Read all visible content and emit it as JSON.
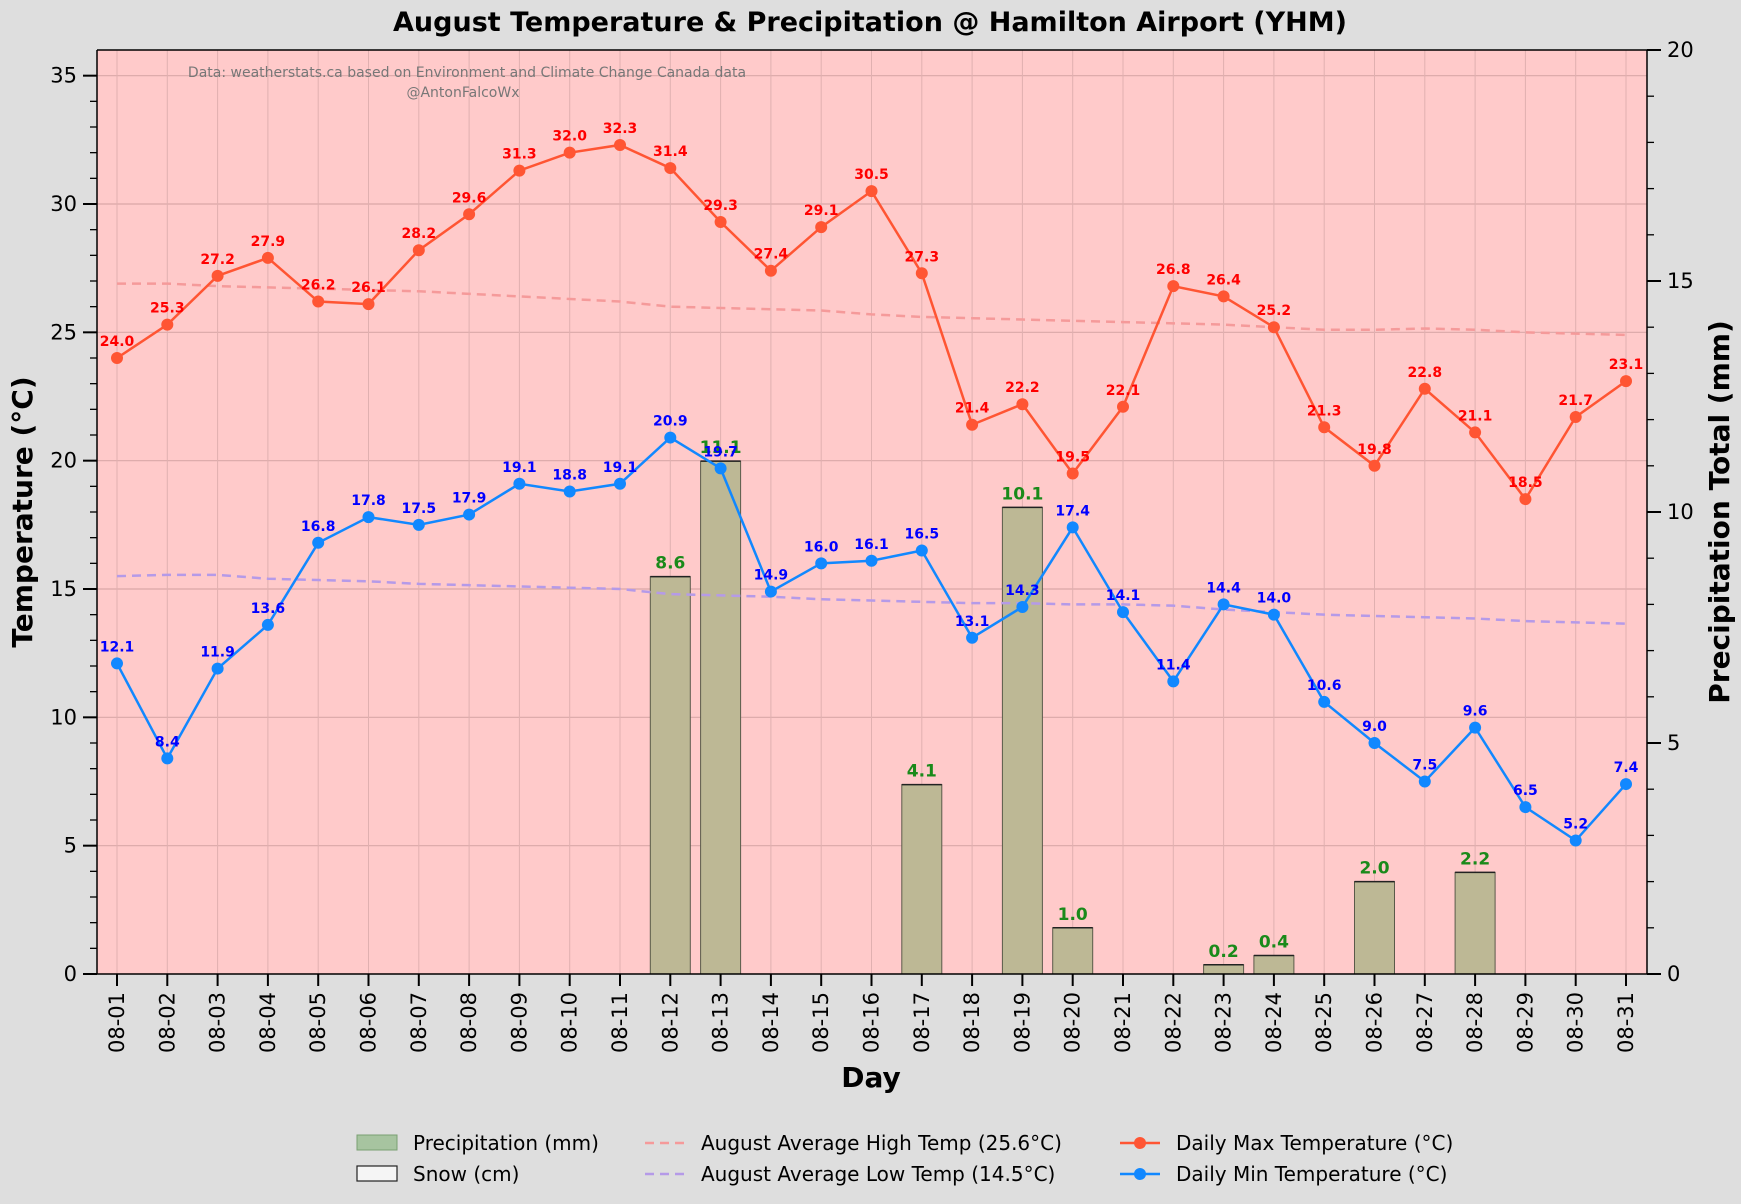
{
  "chart_data": {
    "type": "bar+line",
    "title": "August Temperature & Precipitation @ Hamilton Airport (YHM)",
    "xlabel": "Day",
    "ylabel_left": "Temperature (°C)",
    "ylabel_right": "Precipitation Total (mm)",
    "ylim_left": [
      0,
      36
    ],
    "ylim_right": [
      0,
      20
    ],
    "yticks_left": [
      0,
      5,
      10,
      15,
      20,
      25,
      30,
      35
    ],
    "yticks_right": [
      0,
      5,
      10,
      15,
      20
    ],
    "credit_line1": "Data: weatherstats.ca based on Environment and Climate Change Canada data",
    "credit_line2": "@AntonFalcoWx",
    "categories": [
      "08-01",
      "08-02",
      "08-03",
      "08-04",
      "08-05",
      "08-06",
      "08-07",
      "08-08",
      "08-09",
      "08-10",
      "08-11",
      "08-12",
      "08-13",
      "08-14",
      "08-15",
      "08-16",
      "08-17",
      "08-18",
      "08-19",
      "08-20",
      "08-21",
      "08-22",
      "08-23",
      "08-24",
      "08-25",
      "08-26",
      "08-27",
      "08-28",
      "08-29",
      "08-30",
      "08-31"
    ],
    "series": [
      {
        "name": "Daily Max Temperature (°C)",
        "axis": "left",
        "color": "#ff5533",
        "labelColor": "#ff0000",
        "values": [
          24.0,
          25.3,
          27.2,
          27.9,
          26.2,
          26.1,
          28.2,
          29.6,
          31.3,
          32.0,
          32.3,
          31.4,
          29.3,
          27.4,
          29.1,
          30.5,
          27.3,
          21.4,
          22.2,
          19.5,
          22.1,
          26.8,
          26.4,
          25.2,
          21.3,
          19.8,
          22.8,
          21.1,
          18.5,
          21.7,
          23.1
        ]
      },
      {
        "name": "Daily Min Temperature (°C)",
        "axis": "left",
        "color": "#1188ff",
        "labelColor": "#0000ff",
        "values": [
          12.1,
          8.4,
          11.9,
          13.6,
          16.8,
          17.8,
          17.5,
          17.9,
          19.1,
          18.8,
          19.1,
          20.9,
          19.7,
          14.9,
          16.0,
          16.1,
          16.5,
          13.1,
          14.3,
          17.4,
          14.1,
          11.4,
          14.4,
          14.0,
          10.6,
          9.0,
          7.5,
          9.6,
          6.5,
          5.2,
          7.4
        ]
      },
      {
        "name": "Precipitation (mm)",
        "axis": "right",
        "color": "#a7c4a0",
        "values": [
          0,
          0,
          0,
          0,
          0,
          0,
          0,
          0,
          0,
          0,
          0,
          8.6,
          11.1,
          0,
          0,
          0,
          4.1,
          0,
          10.1,
          1.0,
          0,
          0,
          0.2,
          0.4,
          0,
          2.0,
          0,
          2.2,
          0,
          0,
          0
        ]
      },
      {
        "name": "Snow (cm)",
        "axis": "right",
        "color": "#f5f5f5",
        "values": [
          0,
          0,
          0,
          0,
          0,
          0,
          0,
          0,
          0,
          0,
          0,
          0,
          0,
          0,
          0,
          0,
          0,
          0,
          0,
          0,
          0,
          0,
          0,
          0,
          0,
          0,
          0,
          0,
          0,
          0,
          0
        ]
      },
      {
        "name": "August Average High Temp (25.6°C)",
        "axis": "left",
        "color": "#f59a9a",
        "dashed": true,
        "values": [
          26.9,
          26.9,
          26.8,
          26.75,
          26.7,
          26.65,
          26.6,
          26.5,
          26.4,
          26.3,
          26.2,
          26.0,
          25.95,
          25.9,
          25.85,
          25.7,
          25.6,
          25.55,
          25.5,
          25.45,
          25.4,
          25.35,
          25.3,
          25.2,
          25.1,
          25.1,
          25.15,
          25.1,
          25.0,
          24.95,
          24.9
        ]
      },
      {
        "name": "August Average Low Temp (14.5°C)",
        "axis": "left",
        "color": "#b59ae8",
        "dashed": true,
        "values": [
          15.5,
          15.55,
          15.55,
          15.4,
          15.35,
          15.3,
          15.2,
          15.15,
          15.1,
          15.05,
          15.0,
          14.8,
          14.75,
          14.7,
          14.6,
          14.55,
          14.5,
          14.45,
          14.45,
          14.4,
          14.4,
          14.35,
          14.2,
          14.1,
          14.0,
          13.95,
          13.9,
          13.85,
          13.75,
          13.7,
          13.65
        ]
      }
    ],
    "legend": {
      "placement": "bottom",
      "items": [
        "Precipitation (mm)",
        "Snow (cm)",
        "August Average High Temp (25.6°C)",
        "August Average Low Temp (14.5°C)",
        "Daily Max Temperature (°C)",
        "Daily Min Temperature (°C)"
      ]
    },
    "plot_background": "#ffcaca",
    "grid": true
  }
}
